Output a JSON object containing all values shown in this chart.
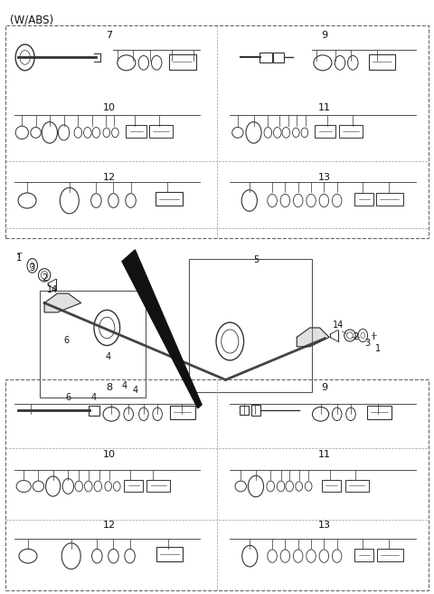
{
  "title": "(W/ABS)",
  "bg_color": "#ffffff",
  "figsize": [
    4.8,
    6.56
  ],
  "dpi": 100
}
